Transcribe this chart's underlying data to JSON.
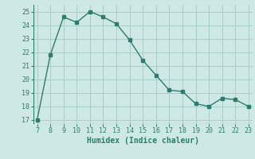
{
  "x": [
    7,
    8,
    9,
    10,
    11,
    12,
    13,
    14,
    15,
    16,
    17,
    18,
    19,
    20,
    21,
    22,
    23
  ],
  "y": [
    17.0,
    21.8,
    24.6,
    24.2,
    25.0,
    24.6,
    24.1,
    22.9,
    21.4,
    20.3,
    19.2,
    19.1,
    18.2,
    18.0,
    18.6,
    18.5,
    18.0
  ],
  "xlabel": "Humidex (Indice chaleur)",
  "ylim": [
    16.7,
    25.5
  ],
  "xlim": [
    6.7,
    23.3
  ],
  "yticks": [
    17,
    18,
    19,
    20,
    21,
    22,
    23,
    24,
    25
  ],
  "xticks": [
    7,
    8,
    9,
    10,
    11,
    12,
    13,
    14,
    15,
    16,
    17,
    18,
    19,
    20,
    21,
    22,
    23
  ],
  "line_color": "#2d7d6e",
  "bg_color": "#cde8e5",
  "grid_color": "#a8ceca",
  "marker": "s",
  "markersize": 2.5,
  "linewidth": 1.0
}
